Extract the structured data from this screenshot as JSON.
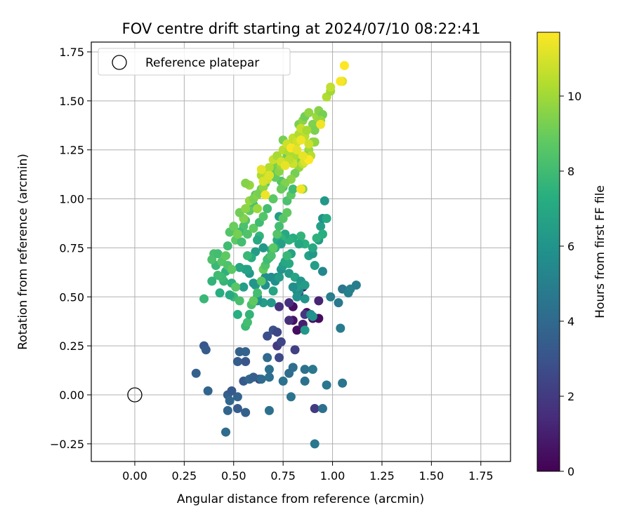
{
  "chart_data": {
    "type": "scatter",
    "title": "FOV centre drift starting at 2024/07/10 08:22:41",
    "xlabel": "Angular distance from reference (arcmin)",
    "ylabel": "Rotation from reference (arcmin)",
    "xlim": [
      -0.22,
      1.9
    ],
    "ylim": [
      -0.34,
      1.8
    ],
    "xticks": [
      0.0,
      0.25,
      0.5,
      0.75,
      1.0,
      1.25,
      1.5,
      1.75
    ],
    "xtick_labels": [
      "0.00",
      "0.25",
      "0.50",
      "0.75",
      "1.00",
      "1.25",
      "1.50",
      "1.75"
    ],
    "yticks": [
      -0.25,
      0.0,
      0.25,
      0.5,
      0.75,
      1.0,
      1.25,
      1.5,
      1.75
    ],
    "ytick_labels": [
      "−0.25",
      "0.00",
      "0.25",
      "0.50",
      "0.75",
      "1.00",
      "1.25",
      "1.50",
      "1.75"
    ],
    "grid": true,
    "legend": {
      "position": "top-left",
      "entries": [
        "Reference platepar"
      ]
    },
    "reference_point": {
      "x": 0.0,
      "y": 0.0,
      "label": "Reference platepar"
    },
    "colorbar": {
      "label": "Hours from first FF file",
      "min": 0,
      "max": 11.7,
      "ticks": [
        0,
        2,
        4,
        6,
        8,
        10
      ],
      "tick_labels": [
        "0",
        "2",
        "4",
        "6",
        "8",
        "10"
      ],
      "colormap": "viridis"
    },
    "points": [
      [
        0.8,
        0.45,
        0.5
      ],
      [
        0.85,
        0.55,
        0.6
      ],
      [
        0.8,
        0.38,
        0.6
      ],
      [
        0.82,
        0.33,
        0.4
      ],
      [
        0.87,
        0.42,
        0.3
      ],
      [
        0.9,
        0.39,
        0.5
      ],
      [
        0.85,
        0.36,
        1.0
      ],
      [
        0.78,
        0.38,
        1.5
      ],
      [
        0.93,
        0.48,
        1.2
      ],
      [
        0.83,
        0.52,
        1.4
      ],
      [
        0.73,
        0.45,
        1.7
      ],
      [
        0.86,
        0.41,
        1.9
      ],
      [
        0.72,
        0.25,
        2.0
      ],
      [
        0.81,
        0.23,
        2.2
      ],
      [
        0.74,
        0.27,
        2.4
      ],
      [
        0.73,
        0.19,
        2.6
      ],
      [
        0.67,
        0.3,
        2.8
      ],
      [
        0.63,
        0.08,
        2.2
      ],
      [
        0.7,
        0.33,
        2.9
      ],
      [
        0.72,
        0.32,
        2.5
      ],
      [
        0.93,
        0.39,
        0.4
      ],
      [
        0.78,
        0.47,
        1.6
      ],
      [
        0.35,
        0.25,
        3.2
      ],
      [
        0.36,
        0.23,
        3.4
      ],
      [
        0.31,
        0.11,
        3.6
      ],
      [
        0.37,
        0.02,
        3.8
      ],
      [
        0.47,
        0.0,
        3.5
      ],
      [
        0.48,
        -0.03,
        3.9
      ],
      [
        0.52,
        -0.01,
        3.7
      ],
      [
        0.55,
        0.07,
        3.3
      ],
      [
        0.58,
        0.08,
        3.9
      ],
      [
        0.6,
        0.09,
        3.5
      ],
      [
        0.52,
        0.17,
        3.4
      ],
      [
        0.56,
        0.22,
        3.7
      ],
      [
        0.53,
        0.22,
        3.6
      ],
      [
        0.56,
        0.17,
        3.1
      ],
      [
        0.47,
        -0.08,
        3.8
      ],
      [
        0.56,
        -0.09,
        3.6
      ],
      [
        0.52,
        -0.07,
        3.4
      ],
      [
        0.46,
        -0.19,
        4.1
      ],
      [
        0.49,
        0.02,
        3.3
      ],
      [
        0.64,
        0.08,
        4.1
      ],
      [
        0.68,
        0.13,
        4.3
      ],
      [
        0.68,
        -0.08,
        4.3
      ],
      [
        0.67,
        0.19,
        4.0
      ],
      [
        0.68,
        0.09,
        4.2
      ],
      [
        0.75,
        0.07,
        4.4
      ],
      [
        0.78,
        0.11,
        4.1
      ],
      [
        0.79,
        -0.01,
        4.5
      ],
      [
        0.8,
        0.14,
        4.2
      ],
      [
        0.86,
        0.13,
        4.4
      ],
      [
        0.86,
        0.07,
        4.3
      ],
      [
        0.9,
        0.13,
        4.6
      ],
      [
        0.91,
        -0.07,
        2.0
      ],
      [
        0.91,
        -0.25,
        4.6
      ],
      [
        0.95,
        -0.07,
        4.3
      ],
      [
        0.97,
        0.05,
        4.6
      ],
      [
        1.05,
        0.06,
        4.5
      ],
      [
        1.03,
        0.47,
        4.7
      ],
      [
        1.04,
        0.34,
        4.8
      ],
      [
        1.05,
        0.54,
        4.6
      ],
      [
        1.08,
        0.52,
        5.0
      ],
      [
        1.09,
        0.54,
        5.1
      ],
      [
        1.12,
        0.56,
        4.9
      ],
      [
        0.99,
        0.5,
        5.0
      ],
      [
        0.95,
        0.63,
        5.4
      ],
      [
        0.89,
        0.41,
        5.6
      ],
      [
        0.9,
        0.4,
        6.0
      ],
      [
        0.86,
        0.33,
        6.2
      ],
      [
        0.86,
        0.49,
        6.1
      ],
      [
        0.83,
        0.53,
        5.8
      ],
      [
        0.82,
        0.53,
        5.5
      ],
      [
        0.72,
        0.6,
        5.3
      ],
      [
        0.69,
        0.6,
        5.6
      ],
      [
        0.66,
        0.56,
        5.8
      ],
      [
        0.65,
        0.47,
        6.4
      ],
      [
        0.61,
        0.56,
        6.3
      ],
      [
        0.55,
        0.55,
        6.5
      ],
      [
        0.58,
        0.62,
        6.2
      ],
      [
        0.57,
        0.64,
        6.7
      ],
      [
        0.6,
        0.57,
        6.1
      ],
      [
        0.62,
        0.48,
        5.9
      ],
      [
        0.62,
        0.5,
        6.0
      ],
      [
        0.66,
        0.6,
        5.7
      ],
      [
        0.69,
        0.47,
        6.2
      ],
      [
        0.7,
        0.53,
        6.8
      ],
      [
        0.71,
        0.58,
        5.8
      ],
      [
        0.73,
        0.6,
        6.4
      ],
      [
        0.74,
        0.64,
        6.0
      ],
      [
        0.75,
        0.66,
        6.5
      ],
      [
        0.78,
        0.62,
        6.3
      ],
      [
        0.76,
        0.68,
        6.9
      ],
      [
        0.78,
        0.67,
        7.0
      ],
      [
        0.79,
        0.72,
        6.6
      ],
      [
        0.81,
        0.6,
        6.8
      ],
      [
        0.82,
        0.55,
        6.4
      ],
      [
        0.84,
        0.58,
        6.1
      ],
      [
        0.8,
        0.55,
        5.7
      ],
      [
        0.82,
        0.5,
        5.9
      ],
      [
        0.86,
        0.56,
        6.4
      ],
      [
        0.88,
        0.71,
        6.7
      ],
      [
        0.9,
        0.72,
        6.2
      ],
      [
        0.91,
        0.66,
        6.5
      ],
      [
        0.93,
        0.79,
        6.3
      ],
      [
        0.94,
        0.86,
        6.6
      ],
      [
        0.95,
        0.9,
        6.0
      ],
      [
        0.96,
        0.99,
        6.2
      ],
      [
        0.97,
        0.9,
        7.1
      ],
      [
        0.95,
        0.82,
        7.3
      ],
      [
        0.92,
        0.8,
        7.5
      ],
      [
        0.9,
        0.75,
        7.0
      ],
      [
        0.86,
        0.77,
        7.4
      ],
      [
        0.84,
        0.81,
        7.6
      ],
      [
        0.83,
        0.77,
        6.9
      ],
      [
        0.8,
        0.8,
        7.2
      ],
      [
        0.79,
        0.72,
        6.7
      ],
      [
        0.77,
        0.71,
        7.8
      ],
      [
        0.78,
        0.79,
        7.4
      ],
      [
        0.76,
        0.82,
        7.0
      ],
      [
        0.74,
        0.8,
        7.6
      ],
      [
        0.72,
        0.79,
        7.1
      ],
      [
        0.73,
        0.91,
        6.4
      ],
      [
        0.74,
        0.77,
        6.6
      ],
      [
        0.71,
        0.75,
        7.3
      ],
      [
        0.69,
        0.74,
        7.5
      ],
      [
        0.68,
        0.7,
        7.0
      ],
      [
        0.65,
        0.75,
        6.2
      ],
      [
        0.63,
        0.81,
        7.6
      ],
      [
        0.62,
        0.79,
        7.0
      ],
      [
        0.61,
        0.73,
        6.4
      ],
      [
        0.59,
        0.7,
        7.2
      ],
      [
        0.57,
        0.71,
        7.8
      ],
      [
        0.56,
        0.64,
        6.7
      ],
      [
        0.53,
        0.65,
        6.9
      ],
      [
        0.52,
        0.41,
        7.3
      ],
      [
        0.5,
        0.5,
        7.8
      ],
      [
        0.49,
        0.57,
        7.4
      ],
      [
        0.48,
        0.51,
        7.1
      ],
      [
        0.46,
        0.63,
        7.5
      ],
      [
        0.45,
        0.58,
        7.7
      ],
      [
        0.44,
        0.6,
        7.9
      ],
      [
        0.43,
        0.52,
        7.3
      ],
      [
        0.42,
        0.61,
        8.0
      ],
      [
        0.41,
        0.66,
        7.8
      ],
      [
        0.4,
        0.72,
        8.2
      ],
      [
        0.39,
        0.58,
        7.6
      ],
      [
        0.35,
        0.49,
        7.8
      ],
      [
        0.39,
        0.69,
        8.3
      ],
      [
        0.42,
        0.72,
        8.1
      ],
      [
        0.44,
        0.68,
        8.5
      ],
      [
        0.46,
        0.71,
        8.8
      ],
      [
        0.47,
        0.66,
        8.4
      ],
      [
        0.47,
        0.76,
        8.0
      ],
      [
        0.49,
        0.64,
        8.7
      ],
      [
        0.51,
        0.55,
        8.6
      ],
      [
        0.53,
        0.48,
        8.2
      ],
      [
        0.56,
        0.35,
        7.9
      ],
      [
        0.57,
        0.37,
        8.1
      ],
      [
        0.58,
        0.41,
        7.6
      ],
      [
        0.59,
        0.46,
        8.3
      ],
      [
        0.6,
        0.48,
        8.8
      ],
      [
        0.62,
        0.52,
        8.1
      ],
      [
        0.64,
        0.58,
        8.6
      ],
      [
        0.65,
        0.64,
        8.9
      ],
      [
        0.66,
        0.66,
        8.4
      ],
      [
        0.67,
        0.69,
        8.0
      ],
      [
        0.69,
        0.71,
        8.3
      ],
      [
        0.7,
        0.75,
        8.7
      ],
      [
        0.72,
        0.82,
        8.5
      ],
      [
        0.73,
        0.86,
        8.1
      ],
      [
        0.75,
        0.9,
        8.6
      ],
      [
        0.77,
        0.93,
        8.8
      ],
      [
        0.77,
        0.99,
        8.3
      ],
      [
        0.79,
        1.02,
        8.7
      ],
      [
        0.8,
        1.05,
        8.0
      ],
      [
        0.75,
        1.06,
        8.2
      ],
      [
        0.74,
        1.09,
        8.5
      ],
      [
        0.71,
        1.11,
        8.9
      ],
      [
        0.69,
        1.13,
        8.4
      ],
      [
        0.66,
        1.08,
        8.7
      ],
      [
        0.64,
        1.05,
        8.9
      ],
      [
        0.61,
        1.02,
        8.6
      ],
      [
        0.6,
        0.97,
        8.2
      ],
      [
        0.58,
        0.94,
        8.8
      ],
      [
        0.56,
        0.89,
        8.5
      ],
      [
        0.55,
        0.86,
        8.3
      ],
      [
        0.53,
        0.83,
        8.0
      ],
      [
        0.51,
        0.79,
        8.7
      ],
      [
        0.5,
        0.84,
        8.9
      ],
      [
        0.48,
        0.83,
        8.5
      ],
      [
        0.54,
        0.78,
        8.1
      ],
      [
        0.57,
        0.82,
        8.4
      ],
      [
        0.6,
        0.85,
        8.8
      ],
      [
        0.63,
        0.88,
        8.0
      ],
      [
        0.65,
        0.91,
        8.5
      ],
      [
        0.67,
        0.95,
        8.1
      ],
      [
        0.7,
        1.0,
        8.7
      ],
      [
        0.7,
        1.12,
        8.9
      ],
      [
        0.5,
        0.86,
        9.0
      ],
      [
        0.52,
        0.82,
        9.2
      ],
      [
        0.55,
        0.9,
        9.4
      ],
      [
        0.53,
        0.93,
        9.1
      ],
      [
        0.56,
        0.95,
        9.6
      ],
      [
        0.58,
        0.99,
        9.8
      ],
      [
        0.6,
        1.0,
        9.3
      ],
      [
        0.62,
        1.02,
        9.5
      ],
      [
        0.62,
        0.95,
        9.9
      ],
      [
        0.63,
        1.03,
        9.2
      ],
      [
        0.65,
        1.06,
        9.7
      ],
      [
        0.67,
        1.1,
        9.4
      ],
      [
        0.68,
        1.13,
        9.8
      ],
      [
        0.7,
        1.15,
        9.0
      ],
      [
        0.72,
        1.18,
        9.3
      ],
      [
        0.73,
        1.14,
        9.6
      ],
      [
        0.74,
        1.17,
        9.9
      ],
      [
        0.76,
        1.2,
        9.5
      ],
      [
        0.77,
        1.23,
        9.1
      ],
      [
        0.78,
        1.26,
        9.7
      ],
      [
        0.79,
        1.22,
        9.4
      ],
      [
        0.8,
        1.28,
        9.9
      ],
      [
        0.82,
        1.3,
        9.2
      ],
      [
        0.84,
        1.34,
        9.8
      ],
      [
        0.83,
        1.38,
        9.3
      ],
      [
        0.85,
        1.4,
        9.6
      ],
      [
        0.86,
        1.42,
        9.1
      ],
      [
        0.88,
        1.44,
        9.7
      ],
      [
        0.9,
        1.38,
        9.4
      ],
      [
        0.92,
        1.42,
        9.9
      ],
      [
        0.93,
        1.45,
        9.5
      ],
      [
        0.95,
        1.43,
        9.2
      ],
      [
        0.94,
        1.4,
        9.8
      ],
      [
        0.91,
        1.35,
        9.3
      ],
      [
        0.9,
        1.29,
        9.6
      ],
      [
        0.88,
        1.25,
        9.9
      ],
      [
        0.86,
        1.22,
        9.1
      ],
      [
        0.84,
        1.19,
        9.5
      ],
      [
        0.83,
        1.16,
        9.8
      ],
      [
        0.81,
        1.13,
        9.2
      ],
      [
        0.79,
        1.1,
        9.6
      ],
      [
        0.76,
        1.08,
        9.4
      ],
      [
        0.74,
        1.05,
        9.0
      ],
      [
        0.75,
        1.3,
        9.2
      ],
      [
        0.85,
        1.05,
        9.5
      ],
      [
        0.91,
        1.29,
        9.7
      ],
      [
        0.58,
        1.07,
        9.8
      ],
      [
        0.56,
        1.08,
        9.5
      ],
      [
        0.64,
        1.12,
        10.2
      ],
      [
        0.66,
        1.14,
        10.5
      ],
      [
        0.67,
        1.1,
        10.8
      ],
      [
        0.68,
        1.16,
        10.3
      ],
      [
        0.7,
        1.2,
        10.7
      ],
      [
        0.72,
        1.22,
        10.1
      ],
      [
        0.74,
        1.19,
        10.9
      ],
      [
        0.75,
        1.25,
        10.4
      ],
      [
        0.77,
        1.28,
        10.8
      ],
      [
        0.78,
        1.24,
        10.2
      ],
      [
        0.8,
        1.31,
        10.6
      ],
      [
        0.82,
        1.29,
        10.9
      ],
      [
        0.83,
        1.33,
        10.3
      ],
      [
        0.84,
        1.36,
        10.7
      ],
      [
        0.86,
        1.32,
        10.5
      ],
      [
        0.87,
        1.35,
        10.1
      ],
      [
        0.88,
        1.28,
        10.8
      ],
      [
        0.89,
        1.22,
        10.4
      ],
      [
        0.87,
        1.2,
        10.9
      ],
      [
        0.85,
        1.18,
        10.6
      ],
      [
        0.81,
        1.22,
        10.2
      ],
      [
        0.8,
        1.18,
        10.8
      ],
      [
        0.78,
        1.2,
        10.5
      ],
      [
        0.97,
        1.52,
        10.3
      ],
      [
        0.99,
        1.55,
        10.0
      ],
      [
        0.99,
        1.57,
        10.6
      ],
      [
        0.65,
        1.09,
        11.0
      ],
      [
        0.64,
        1.15,
        11.2
      ],
      [
        0.66,
        1.02,
        11.4
      ],
      [
        0.68,
        1.12,
        11.1
      ],
      [
        0.76,
        1.17,
        11.3
      ],
      [
        0.79,
        1.26,
        11.6
      ],
      [
        0.82,
        1.25,
        11.2
      ],
      [
        0.84,
        1.05,
        11.5
      ],
      [
        0.86,
        1.19,
        11.1
      ],
      [
        0.88,
        1.2,
        11.7
      ],
      [
        0.84,
        1.3,
        11.4
      ],
      [
        0.85,
        1.22,
        11.3
      ],
      [
        0.94,
        1.38,
        11.5
      ],
      [
        1.05,
        1.6,
        11.1
      ],
      [
        1.04,
        1.6,
        11.6
      ],
      [
        1.06,
        1.68,
        11.7
      ]
    ]
  }
}
